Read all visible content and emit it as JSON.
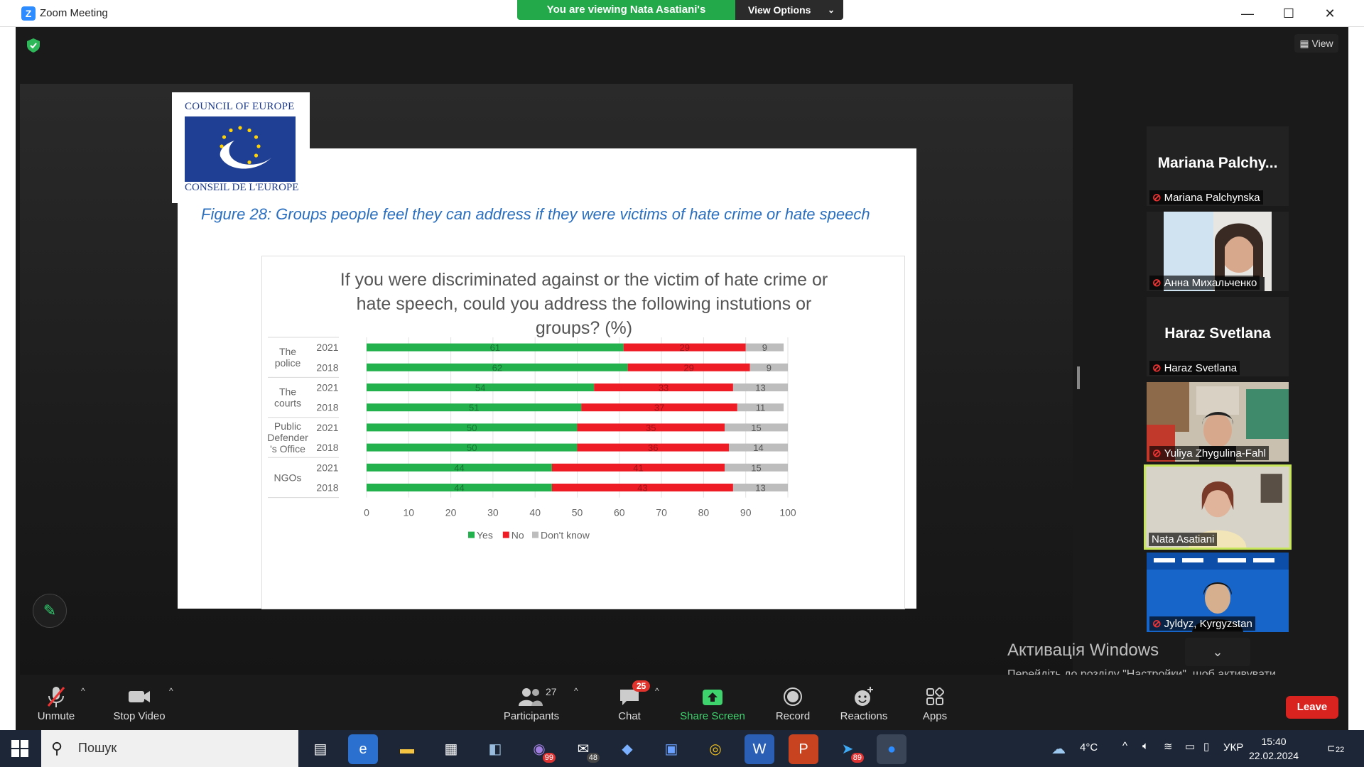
{
  "window": {
    "title": "Zoom Meeting",
    "viewing_banner": "You are viewing Nata Asatiani's screen",
    "view_options": "View Options",
    "view_button": "View"
  },
  "slide": {
    "logo_top": "COUNCIL OF EUROPE",
    "logo_bottom": "CONSEIL DE L'EUROPE",
    "figure_title": "Figure 28: Groups people feel they can address if they were victims of hate crime or hate speech"
  },
  "chart_data": {
    "type": "bar",
    "orientation": "horizontal-stacked",
    "title": "If you were discriminated against or the victim of hate crime or hate speech, could you address the following instutions or groups? (%)",
    "title_lines": [
      "If you were discriminated against or the victim of hate crime or",
      "hate speech, could you address the following instutions or",
      "groups? (%)"
    ],
    "groups": [
      {
        "name": "The police",
        "name_lines": [
          "The",
          "police"
        ]
      },
      {
        "name": "The courts",
        "name_lines": [
          "The",
          "courts"
        ]
      },
      {
        "name": "Public Defender 's Office",
        "name_lines": [
          "Public",
          "Defender",
          "'s Office"
        ]
      },
      {
        "name": "NGOs",
        "name_lines": [
          "NGOs"
        ]
      }
    ],
    "rows": [
      {
        "group": 0,
        "year": "2021",
        "yes": 61,
        "no": 29,
        "dk": 9
      },
      {
        "group": 0,
        "year": "2018",
        "yes": 62,
        "no": 29,
        "dk": 9
      },
      {
        "group": 1,
        "year": "2021",
        "yes": 54,
        "no": 33,
        "dk": 13
      },
      {
        "group": 1,
        "year": "2018",
        "yes": 51,
        "no": 37,
        "dk": 11
      },
      {
        "group": 2,
        "year": "2021",
        "yes": 50,
        "no": 35,
        "dk": 15
      },
      {
        "group": 2,
        "year": "2018",
        "yes": 50,
        "no": 36,
        "dk": 14
      },
      {
        "group": 3,
        "year": "2021",
        "yes": 44,
        "no": 41,
        "dk": 15
      },
      {
        "group": 3,
        "year": "2018",
        "yes": 44,
        "no": 43,
        "dk": 13
      }
    ],
    "series": [
      {
        "name": "Yes",
        "color": "#22b14c"
      },
      {
        "name": "No",
        "color": "#ee1c24"
      },
      {
        "name": "Don't know",
        "color": "#bdbdbd"
      }
    ],
    "xlim": [
      0,
      100
    ],
    "xticks": [
      0,
      10,
      20,
      30,
      40,
      50,
      60,
      70,
      80,
      90,
      100
    ],
    "grid": true,
    "legend": "bottom"
  },
  "participants": [
    {
      "big_name": "Mariana  Palchy...",
      "label": "Mariana Palchynska",
      "video": false,
      "muted": true
    },
    {
      "big_name": "",
      "label": "Анна Михальченко",
      "video": true,
      "muted": true
    },
    {
      "big_name": "Haraz Svetlana",
      "label": "Haraz Svetlana",
      "video": false,
      "muted": true
    },
    {
      "big_name": "",
      "label": "Yuliya Zhygulina-Fahl",
      "video": true,
      "muted": true
    },
    {
      "big_name": "",
      "label": "Nata Asatiani",
      "video": true,
      "muted": false,
      "active": true
    },
    {
      "big_name": "",
      "label": "Jyldyz, Kyrgyzstan",
      "video": true,
      "muted": true
    }
  ],
  "activation": {
    "title": "Активація Windows",
    "subtitle": "Перейдіть до розділу \"Настройки\", щоб активувати Windows."
  },
  "toolbar": {
    "unmute": "Unmute",
    "stop_video": "Stop Video",
    "participants": "Participants",
    "participants_count": "27",
    "chat": "Chat",
    "chat_badge": "25",
    "share_screen": "Share Screen",
    "record": "Record",
    "reactions": "Reactions",
    "apps": "Apps",
    "leave": "Leave"
  },
  "taskbar": {
    "search_placeholder": "Пошук",
    "viber_badge": "99",
    "mail_badge": "48",
    "telegram_badge": "89",
    "weather": "4°C",
    "language": "УКР",
    "time": "15:40",
    "date": "22.02.2024",
    "notifications": "22"
  }
}
